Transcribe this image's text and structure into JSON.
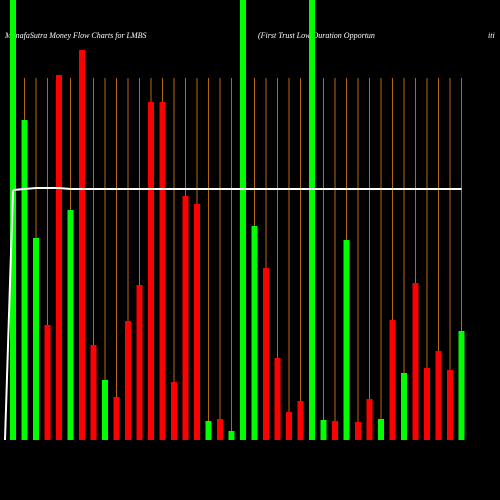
{
  "chart_data": {
    "type": "bar",
    "title": "MunafaSutra  Money Flow  Charts for LMBS",
    "subtitle": "(First Trust Low Duration  Opportun",
    "subtitle_tail": "iti",
    "categories": [
      null,
      null,
      null,
      null,
      null,
      null,
      null,
      null,
      null,
      null,
      null,
      null,
      null,
      null,
      null,
      null,
      null,
      null,
      null,
      null,
      null,
      null,
      null,
      null,
      null,
      null,
      null,
      null,
      null,
      null,
      null,
      null,
      null,
      null,
      null,
      null,
      null,
      null,
      null,
      null
    ],
    "values": [
      440,
      320,
      202,
      115,
      365,
      230,
      390,
      95,
      60,
      43,
      119,
      155,
      338,
      338,
      58,
      244,
      236,
      19,
      21,
      9,
      440,
      214,
      172,
      82,
      28,
      39,
      440,
      20,
      19,
      200,
      18,
      41,
      21,
      120,
      67,
      157,
      72,
      89,
      70,
      109
    ],
    "colors": [
      "#00ff00",
      "#00ff00",
      "#00ff00",
      "#ff0000",
      "#ff0000",
      "#00ff00",
      "#ff0000",
      "#ff0000",
      "#00ff00",
      "#ff0000",
      "#ff0000",
      "#ff0000",
      "#ff0000",
      "#ff0000",
      "#ff0000",
      "#ff0000",
      "#ff0000",
      "#00ff00",
      "#ff0000",
      "#00ff00",
      "#00ff00",
      "#00ff00",
      "#ff0000",
      "#ff0000",
      "#ff0000",
      "#ff0000",
      "#00ff00",
      "#00ff00",
      "#ff0000",
      "#00ff00",
      "#ff0000",
      "#ff0000",
      "#00ff00",
      "#ff0000",
      "#00ff00",
      "#ff0000",
      "#ff0000",
      "#ff0000",
      "#ff0000",
      "#00ff00"
    ],
    "line_values": [
      250,
      251,
      252,
      252,
      252,
      251,
      251,
      251,
      251,
      251,
      251,
      251,
      251,
      251,
      251,
      251,
      251,
      251,
      251,
      251,
      251,
      251,
      251,
      251,
      251,
      251,
      251,
      251,
      251,
      251,
      251,
      251,
      251,
      251,
      251,
      251,
      251,
      251,
      251,
      251
    ],
    "line_color": "#ffffff",
    "grid_color": "#b8690f",
    "grid": true,
    "ylim": [
      0,
      440
    ]
  }
}
